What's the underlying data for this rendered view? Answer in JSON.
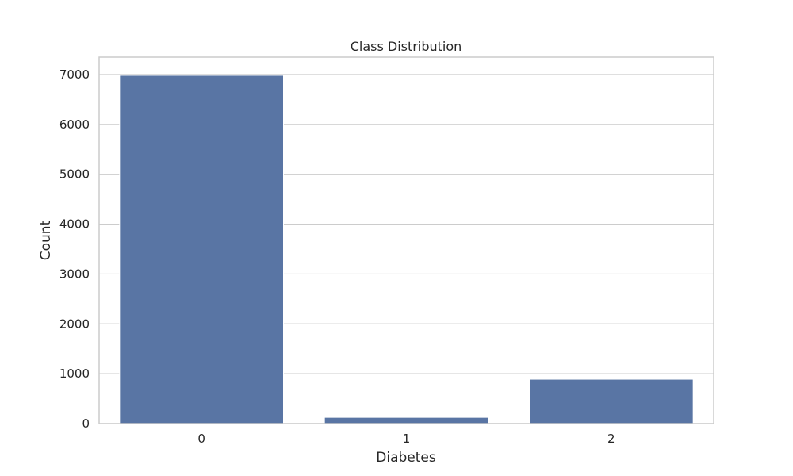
{
  "chart_data": {
    "type": "bar",
    "title": "Class Distribution",
    "xlabel": "Diabetes",
    "ylabel": "Count",
    "categories": [
      "0",
      "1",
      "2"
    ],
    "values": [
      6985,
      125,
      890
    ],
    "ylim": [
      0,
      7350
    ],
    "yticks": [
      0,
      1000,
      2000,
      3000,
      4000,
      5000,
      6000,
      7000
    ],
    "grid": true,
    "bar_color": "#5975a4"
  }
}
